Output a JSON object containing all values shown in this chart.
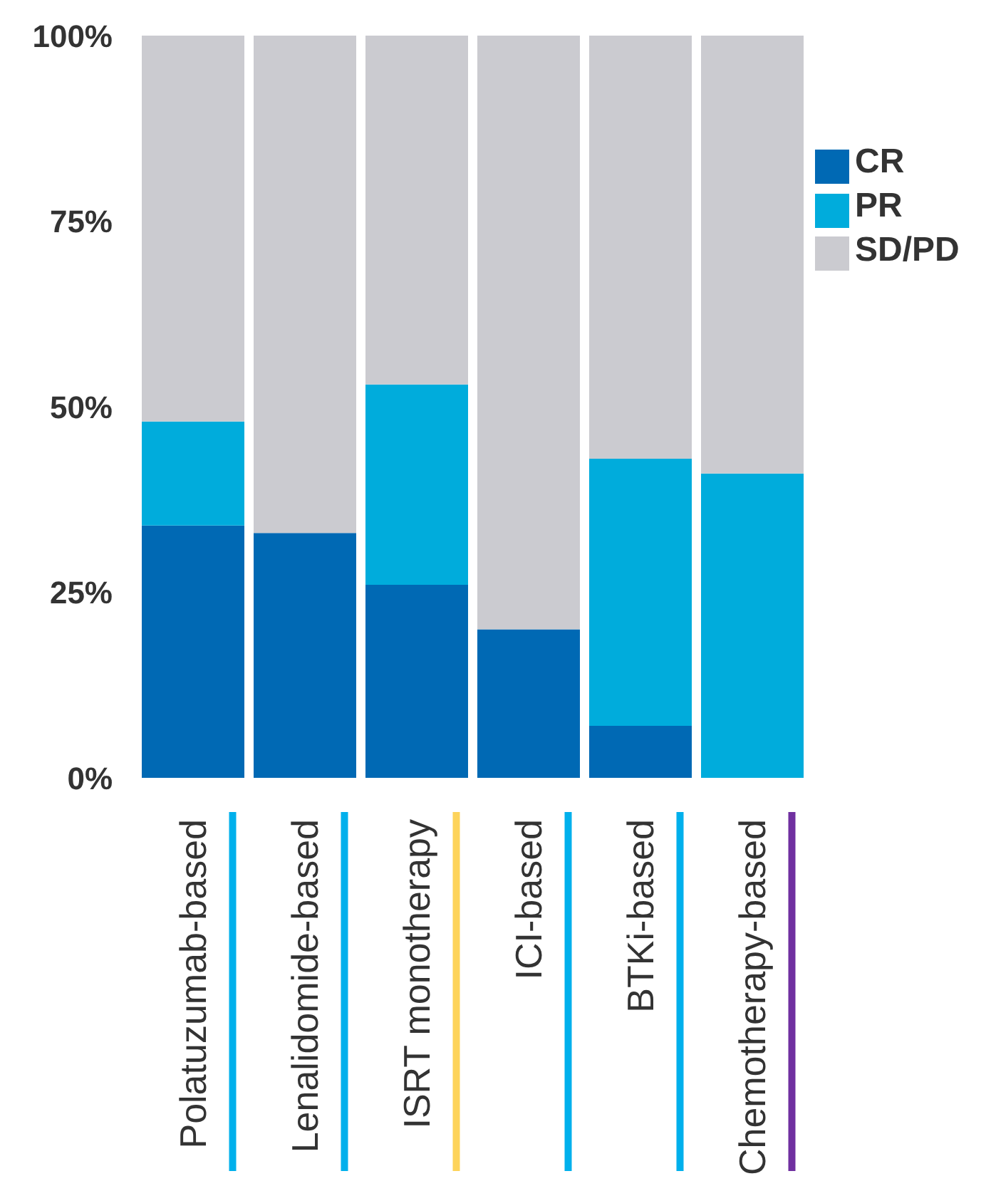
{
  "chart_data": {
    "type": "bar",
    "categories": [
      "Polatuzumab-based",
      "Lenalidomide-based",
      "ISRT monotherapy",
      "ICI-based",
      "BTKi-based",
      "Chemotherapy-based"
    ],
    "series": [
      {
        "name": "CR",
        "color": "#0069b4",
        "values": [
          34,
          33,
          26,
          20,
          7,
          0
        ]
      },
      {
        "name": "PR",
        "color": "#00acdc",
        "values": [
          14,
          0,
          27,
          0,
          36,
          41
        ]
      },
      {
        "name": "SD/PD",
        "color": "#cbcbd0",
        "values": [
          52,
          67,
          47,
          80,
          57,
          59
        ]
      }
    ],
    "stacked": true,
    "ylim": [
      0,
      100
    ],
    "yticks": [
      {
        "value": 0,
        "label": "0%"
      },
      {
        "value": 25,
        "label": "25%"
      },
      {
        "value": 50,
        "label": "50%"
      },
      {
        "value": 75,
        "label": "75%"
      },
      {
        "value": 100,
        "label": "100%"
      }
    ],
    "legend": "top right"
  }
}
